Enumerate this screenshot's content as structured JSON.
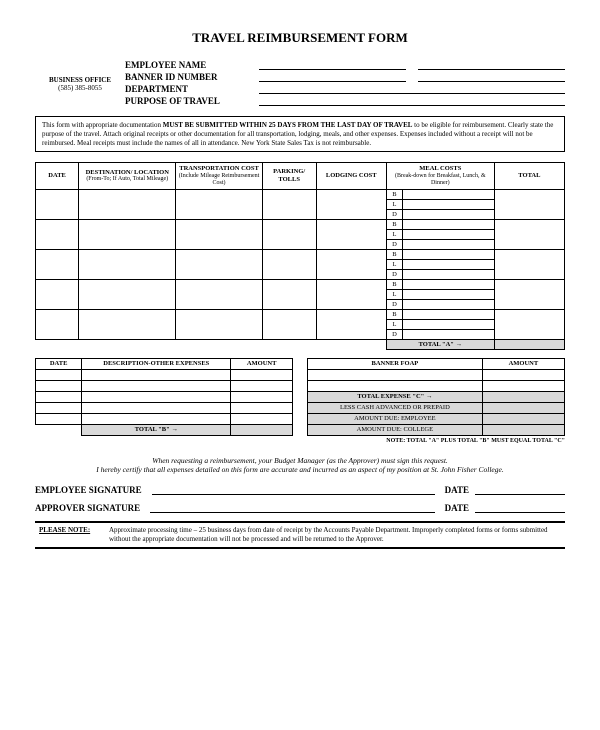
{
  "title": "TRAVEL REIMBURSEMENT FORM",
  "office": {
    "title": "BUSINESS OFFICE",
    "phone": "(585) 385-8055"
  },
  "header_fields": {
    "employee_name": "EMPLOYEE NAME",
    "banner_id": "BANNER ID NUMBER",
    "department": "DEPARTMENT",
    "purpose": "PURPOSE OF TRAVEL"
  },
  "notice": {
    "p1a": "This form with appropriate documentation ",
    "p1b": "MUST BE SUBMITTED WITHIN 25 DAYS FROM THE LAST DAY OF TRAVEL",
    "p1c": " to be eligible for reimbursement. Clearly state the purpose of the travel. Attach original receipts or other documentation for all transportation, lodging, meals, and other expenses. Expenses included without a receipt will not be reimbursed. Meal receipts must include the names of all in attendance. New York State Sales Tax is not reimbursable."
  },
  "main_table": {
    "cols": {
      "date": "DATE",
      "dest": "DESTINATION/\nLOCATION",
      "dest_sub": "(From-To;\nIf Auto, Total Mileage)",
      "trans": "TRANSPORTATION\nCOST",
      "trans_sub": "(Include Mileage\nReimbursement Cost)",
      "park": "PARKING/\nTOLLS",
      "lodge": "LODGING COST",
      "meal": "MEAL COSTS",
      "meal_sub": "(Break-down for\nBreakfast, Lunch,\n& Dinner)",
      "total": "TOTAL"
    },
    "meal_rows": [
      "B",
      "L",
      "D"
    ],
    "group_count": 5,
    "total_a": "TOTAL \"A\" →"
  },
  "other_table": {
    "cols": {
      "date": "DATE",
      "desc": "DESCRIPTION-OTHER EXPENSES",
      "amt": "AMOUNT"
    },
    "row_count": 5,
    "total_b": "TOTAL \"B\" →"
  },
  "foap_table": {
    "cols": {
      "foap": "BANNER FOAP",
      "amt": "AMOUNT"
    },
    "blank_rows": 2,
    "lines": {
      "total_c": "TOTAL EXPENSE \"C\" →",
      "less": "LESS CASH ADVANCED OR PREPAID",
      "due_emp": "AMOUNT DUE: EMPLOYEE",
      "due_col": "AMOUNT DUE: COLLEGE"
    }
  },
  "note_line": "NOTE: TOTAL \"A\" PLUS TOTAL \"B\" MUST EQUAL TOTAL \"C\"",
  "cert": {
    "l1": "When requesting a reimbursement, your Budget Manager (as the Approver) must sign this request.",
    "l2": "I hereby certify that all expenses detailed on this form are accurate and incurred as an aspect of my position at St. John Fisher College."
  },
  "sig": {
    "emp": "EMPLOYEE SIGNATURE",
    "app": "APPROVER SIGNATURE",
    "date": "DATE"
  },
  "please_note": {
    "label": "PLEASE NOTE:",
    "text": "Approximate processing time – 25 business days from date of receipt by the Accounts Payable Department. Improperly completed forms or forms submitted without the appropriate documentation will not be processed and will be returned to the Approver."
  }
}
